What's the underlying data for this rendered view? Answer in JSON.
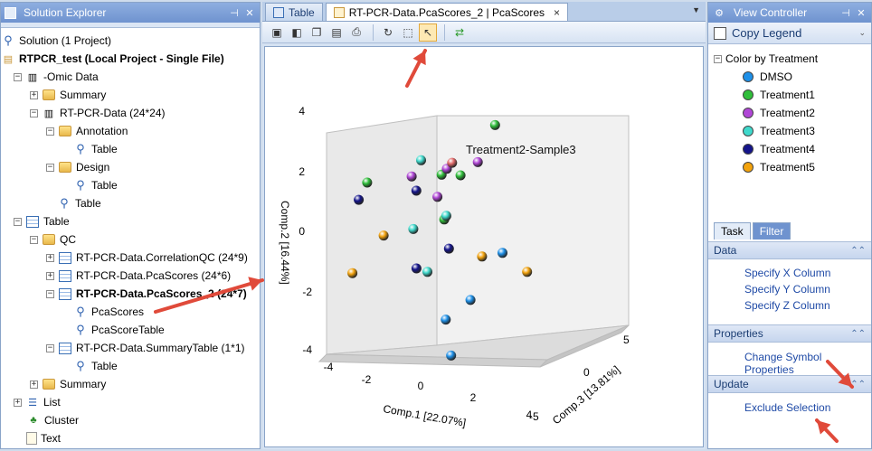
{
  "solution_explorer": {
    "title": "Solution Explorer",
    "solution": "Solution (1 Project)",
    "project": "RTPCR_test (Local Project - Single File)",
    "items": [
      "-Omic Data",
      "Summary",
      "RT-PCR-Data (24*24)",
      "Annotation",
      "Table",
      "Design",
      "Table",
      "Table",
      "Table",
      "QC",
      "RT-PCR-Data.CorrelationQC (24*9)",
      "RT-PCR-Data.PcaScores (24*6)",
      "RT-PCR-Data.PcaScores_2 (24*7)",
      "PcaScores",
      "PcaScoreTable",
      "RT-PCR-Data.SummaryTable (1*1)",
      "Table",
      "Summary",
      "List",
      "Cluster",
      "Text"
    ]
  },
  "document": {
    "tabs": [
      "Table",
      "RT-PCR-Data.PcaScores_2 | PcaScores"
    ],
    "close": "×"
  },
  "chart_data": {
    "type": "scatter",
    "annotation": "Treatment2-Sample3",
    "xlabel": "Comp.1 [22.07%]",
    "ylabel": "Comp.2 [16.44%]",
    "zlabel": "Comp.3 [13.81%]",
    "xticks": [
      "-4",
      "-2",
      "0",
      "2",
      "4"
    ],
    "yticks": [
      "4",
      "2",
      "0",
      "-2",
      "-4"
    ],
    "zticks": [
      "5",
      "0",
      "-5"
    ],
    "points": [
      {
        "x": -2.6,
        "y": -1.4,
        "z": 0,
        "series": "Treatment5"
      },
      {
        "x": -1.6,
        "y": -0.2,
        "z": 0.5,
        "series": "Treatment5"
      },
      {
        "x": 3.1,
        "y": -0.6,
        "z": -2,
        "series": "Treatment5"
      },
      {
        "x": 3.3,
        "y": -1.6,
        "z": 2,
        "series": "Treatment5"
      },
      {
        "x": 0.8,
        "y": 1.9,
        "z": 0,
        "series": "Treatment1"
      },
      {
        "x": 1.7,
        "y": 3.2,
        "z": 3,
        "series": "Treatment1"
      },
      {
        "x": 1.9,
        "y": 2.0,
        "z": -1,
        "series": "Treatment1"
      },
      {
        "x": 0.9,
        "y": 0.4,
        "z": 0,
        "series": "Treatment1"
      },
      {
        "x": -0.9,
        "y": 2.0,
        "z": -3,
        "series": "Treatment1"
      },
      {
        "x": 1.8,
        "y": 2.2,
        "z": 1,
        "series": "Treatment2"
      },
      {
        "x": 1.4,
        "y": 1.4,
        "z": -2,
        "series": "Treatment2"
      },
      {
        "x": -1.1,
        "y": 1.6,
        "z": 2,
        "series": "Treatment2"
      },
      {
        "x": 1.0,
        "y": 2.1,
        "z": 0,
        "series": "Treatment2"
      },
      {
        "x": -1.5,
        "y": 1.9,
        "z": 4,
        "series": "Treatment3"
      },
      {
        "x": 0.1,
        "y": 0.2,
        "z": -1,
        "series": "Treatment3"
      },
      {
        "x": 0.6,
        "y": 0.4,
        "z": 1,
        "series": "Treatment3"
      },
      {
        "x": -0.5,
        "y": -1.6,
        "z": 2,
        "series": "Treatment3"
      },
      {
        "x": -1.6,
        "y": 1.3,
        "z": -2,
        "series": "Treatment4"
      },
      {
        "x": -1.3,
        "y": 1.0,
        "z": 3,
        "series": "Treatment4"
      },
      {
        "x": 0.7,
        "y": -0.7,
        "z": 1,
        "series": "Treatment4"
      },
      {
        "x": 0.6,
        "y": -1.0,
        "z": -2,
        "series": "Treatment4"
      },
      {
        "x": 1.9,
        "y": -2.3,
        "z": 0,
        "series": "DMSO"
      },
      {
        "x": 3.5,
        "y": -0.6,
        "z": -1,
        "series": "DMSO"
      },
      {
        "x": 0.2,
        "y": -3.2,
        "z": 2,
        "series": "DMSO"
      },
      {
        "x": 2.3,
        "y": -3.8,
        "z": -3,
        "series": "DMSO"
      }
    ],
    "highlight": {
      "x": 1.2,
      "y": 2.3,
      "z": 0
    }
  },
  "view_controller": {
    "title": "View Controller",
    "copy_legend": "Copy Legend",
    "color_by": "Color by Treatment",
    "legend": [
      {
        "label": "DMSO",
        "color": "#1e90e8"
      },
      {
        "label": "Treatment1",
        "color": "#2fbe3a"
      },
      {
        "label": "Treatment2",
        "color": "#b046d6"
      },
      {
        "label": "Treatment3",
        "color": "#3fd9cc"
      },
      {
        "label": "Treatment4",
        "color": "#14148a"
      },
      {
        "label": "Treatment5",
        "color": "#f2a20c"
      }
    ],
    "tabs": [
      "Task",
      "Filter"
    ],
    "sections": {
      "data": "Data",
      "properties": "Properties",
      "update": "Update"
    },
    "links": {
      "specify_x": "Specify X Column",
      "specify_y": "Specify Y Column",
      "specify_z": "Specify Z Column",
      "change_symbol": "Change Symbol Properties",
      "exclude": "Exclude Selection"
    }
  },
  "arrow_color": "#e04a3a"
}
